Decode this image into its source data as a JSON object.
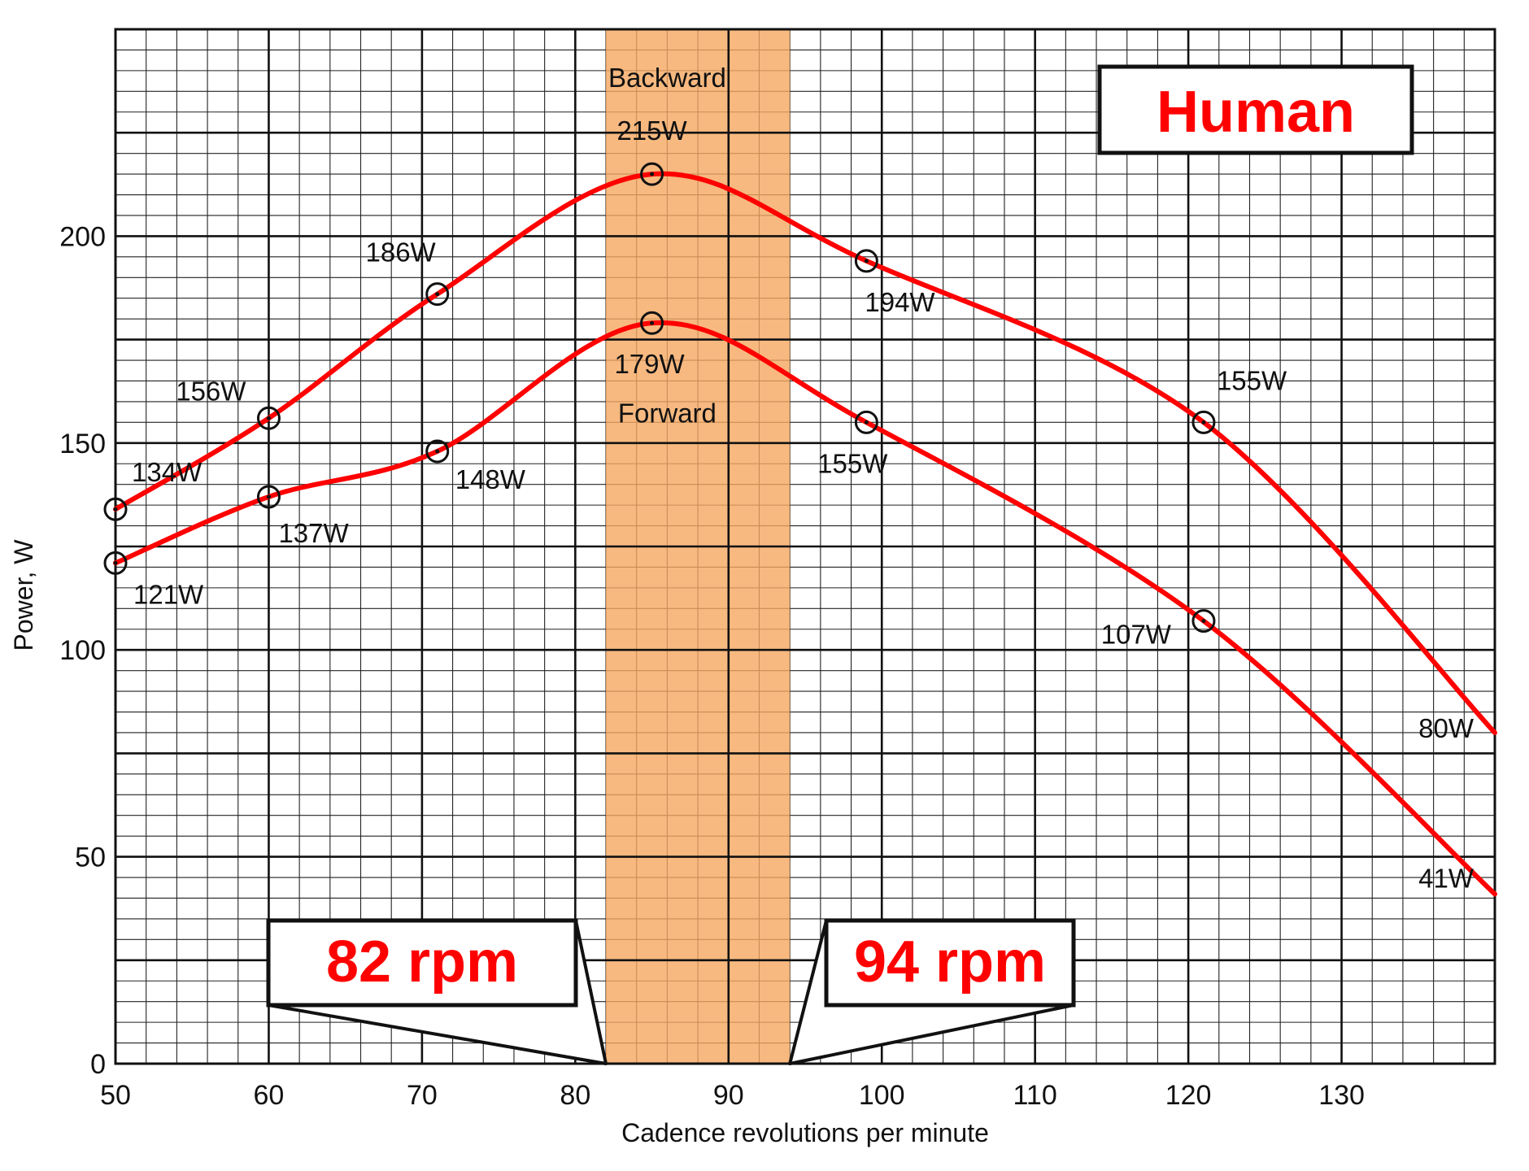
{
  "chart_data": {
    "type": "line",
    "title": "Human",
    "xlabel": "Cadence revolutions per minute",
    "ylabel": "Power, W",
    "xlim": [
      50,
      140
    ],
    "ylim": [
      0,
      250
    ],
    "x_ticks": [
      "50",
      "60",
      "70",
      "80",
      "90",
      "100",
      "110",
      "120",
      "130"
    ],
    "y_ticks": [
      "0",
      "50",
      "100",
      "150",
      "200"
    ],
    "grid": true,
    "highlight_band": {
      "from": 82,
      "to": 94,
      "color": "#f5a860"
    },
    "series": [
      {
        "name": "Backward",
        "color": "#ff0000",
        "points": [
          {
            "x": 50,
            "y": 134,
            "label": "134W"
          },
          {
            "x": 60,
            "y": 156,
            "label": "156W"
          },
          {
            "x": 71,
            "y": 186,
            "label": "186W"
          },
          {
            "x": 85,
            "y": 215,
            "label": "215W"
          },
          {
            "x": 99,
            "y": 194,
            "label": "194W"
          },
          {
            "x": 121,
            "y": 155,
            "label": "155W"
          },
          {
            "x": 140,
            "y": 80,
            "label": "80W"
          }
        ]
      },
      {
        "name": "Forward",
        "color": "#ff0000",
        "points": [
          {
            "x": 50,
            "y": 121,
            "label": "121W"
          },
          {
            "x": 60,
            "y": 137,
            "label": "137W"
          },
          {
            "x": 71,
            "y": 148,
            "label": "148W"
          },
          {
            "x": 85,
            "y": 179,
            "label": "179W"
          },
          {
            "x": 99,
            "y": 155,
            "label": "155W"
          },
          {
            "x": 121,
            "y": 107,
            "label": "107W"
          },
          {
            "x": 140,
            "y": 41,
            "label": "41W"
          }
        ]
      }
    ],
    "annotations": [
      {
        "text": "82 rpm",
        "x": 82
      },
      {
        "text": "94 rpm",
        "x": 94
      }
    ]
  }
}
